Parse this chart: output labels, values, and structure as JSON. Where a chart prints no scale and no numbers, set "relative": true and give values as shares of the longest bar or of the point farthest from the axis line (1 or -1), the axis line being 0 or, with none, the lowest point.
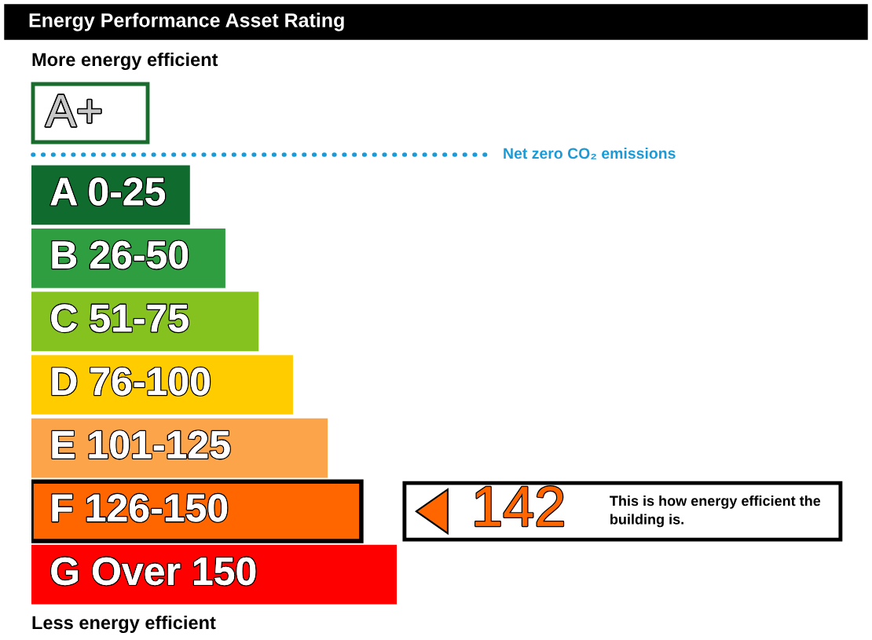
{
  "chart_data": {
    "type": "bar",
    "orientation": "horizontal",
    "relative": true,
    "title": "Energy Performance Asset Rating",
    "categories": [
      "A 0-25",
      "B 26-50",
      "C 51-75",
      "D 76-100",
      "E 101-125",
      "F 126-150",
      "G Over 150"
    ],
    "values": [
      0.434,
      0.531,
      0.622,
      0.716,
      0.811,
      0.903,
      1
    ],
    "colors": [
      "#0f6b2e",
      "#2e9e41",
      "#85c21f",
      "#ffcc00",
      "#fba44a",
      "#ff6600",
      "#ff0000"
    ],
    "annotations": [
      "More energy efficient",
      "A+",
      "Net zero CO₂ emissions",
      {
        "text": "142",
        "x": 0.903,
        "y": "F 126-150"
      },
      "This is how energy efficient the building is.",
      "Less energy efficient"
    ]
  }
}
